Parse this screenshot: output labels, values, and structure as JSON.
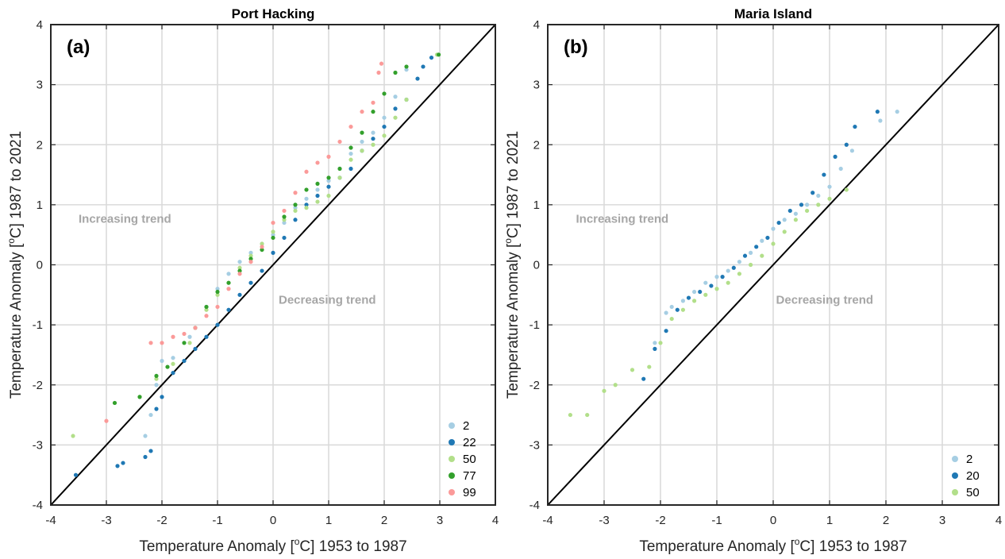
{
  "chart_data": [
    {
      "type": "scatter",
      "panel_label": "(a)",
      "title": "Port Hacking",
      "xlabel_pre": "Temperature Anomaly [",
      "xlabel_sup": "o",
      "xlabel_post": "C] 1953 to 1987",
      "ylabel_pre": "Temperature Anomaly [",
      "ylabel_sup": "o",
      "ylabel_post": "C] 1987 to 2021",
      "xlim": [
        -4,
        4
      ],
      "ylim": [
        -4,
        4
      ],
      "xticks": [
        "-4",
        "-3",
        "-2",
        "-1",
        "0",
        "1",
        "2",
        "3",
        "4"
      ],
      "yticks": [
        "-4",
        "-3",
        "-2",
        "-1",
        "0",
        "1",
        "2",
        "3",
        "4"
      ],
      "grid": true,
      "reference_line": "y = x",
      "annotations": [
        {
          "text": "Increasing trend",
          "x": -3.5,
          "y": 0.7
        },
        {
          "text": "Decreasing trend",
          "x": 0.1,
          "y": -0.65
        }
      ],
      "legend_position": "bottom-right",
      "series": [
        {
          "name": "2",
          "color": "#a6cee3",
          "points": [
            [
              -2.3,
              -2.85
            ],
            [
              -2.2,
              -2.5
            ],
            [
              -2.1,
              -2.0
            ],
            [
              -2.0,
              -1.6
            ],
            [
              -1.8,
              -1.55
            ],
            [
              -1.5,
              -1.2
            ],
            [
              -1.2,
              -0.7
            ],
            [
              -1.0,
              -0.4
            ],
            [
              -0.8,
              -0.15
            ],
            [
              -0.6,
              0.05
            ],
            [
              -0.4,
              0.2
            ],
            [
              -0.2,
              0.35
            ],
            [
              0.0,
              0.5
            ],
            [
              0.2,
              0.7
            ],
            [
              0.4,
              0.95
            ],
            [
              0.6,
              1.1
            ],
            [
              0.8,
              1.25
            ],
            [
              1.0,
              1.4
            ],
            [
              1.2,
              1.6
            ],
            [
              1.4,
              1.85
            ],
            [
              1.6,
              2.05
            ],
            [
              1.8,
              2.2
            ],
            [
              2.0,
              2.45
            ],
            [
              2.2,
              2.8
            ],
            [
              2.4,
              3.25
            ]
          ]
        },
        {
          "name": "22",
          "color": "#1f78b4",
          "points": [
            [
              -3.55,
              -3.5
            ],
            [
              -2.8,
              -3.35
            ],
            [
              -2.7,
              -3.3
            ],
            [
              -2.3,
              -3.2
            ],
            [
              -2.2,
              -3.1
            ],
            [
              -2.1,
              -2.4
            ],
            [
              -2.0,
              -2.2
            ],
            [
              -1.8,
              -1.8
            ],
            [
              -1.6,
              -1.6
            ],
            [
              -1.4,
              -1.4
            ],
            [
              -1.2,
              -1.2
            ],
            [
              -1.0,
              -1.0
            ],
            [
              -0.8,
              -0.75
            ],
            [
              -0.6,
              -0.5
            ],
            [
              -0.4,
              -0.3
            ],
            [
              -0.2,
              -0.1
            ],
            [
              0.0,
              0.2
            ],
            [
              0.2,
              0.45
            ],
            [
              0.4,
              0.75
            ],
            [
              0.6,
              1.0
            ],
            [
              0.8,
              1.15
            ],
            [
              1.0,
              1.3
            ],
            [
              1.2,
              1.45
            ],
            [
              1.4,
              1.6
            ],
            [
              1.6,
              1.9
            ],
            [
              1.8,
              2.1
            ],
            [
              2.0,
              2.3
            ],
            [
              2.2,
              2.6
            ],
            [
              2.4,
              2.75
            ],
            [
              2.6,
              3.1
            ],
            [
              2.7,
              3.3
            ],
            [
              2.85,
              3.45
            ]
          ]
        },
        {
          "name": "50",
          "color": "#b2df8a",
          "points": [
            [
              -3.6,
              -2.85
            ],
            [
              -2.4,
              -2.2
            ],
            [
              -2.1,
              -1.9
            ],
            [
              -1.8,
              -1.65
            ],
            [
              -1.5,
              -1.3
            ],
            [
              -1.2,
              -0.75
            ],
            [
              -1.0,
              -0.5
            ],
            [
              -0.8,
              -0.3
            ],
            [
              -0.6,
              -0.05
            ],
            [
              -0.4,
              0.15
            ],
            [
              -0.2,
              0.35
            ],
            [
              0.0,
              0.55
            ],
            [
              0.2,
              0.75
            ],
            [
              0.4,
              0.9
            ],
            [
              0.6,
              0.95
            ],
            [
              0.8,
              1.05
            ],
            [
              1.0,
              1.15
            ],
            [
              1.2,
              1.45
            ],
            [
              1.4,
              1.75
            ],
            [
              1.6,
              1.9
            ],
            [
              1.8,
              2.0
            ],
            [
              2.0,
              2.15
            ],
            [
              2.2,
              2.45
            ],
            [
              2.4,
              2.75
            ],
            [
              2.95,
              3.5
            ]
          ]
        },
        {
          "name": "77",
          "color": "#33a02c",
          "points": [
            [
              -2.85,
              -2.3
            ],
            [
              -2.4,
              -2.2
            ],
            [
              -2.1,
              -1.85
            ],
            [
              -1.9,
              -1.7
            ],
            [
              -1.6,
              -1.3
            ],
            [
              -1.4,
              -1.05
            ],
            [
              -1.2,
              -0.7
            ],
            [
              -1.0,
              -0.45
            ],
            [
              -0.8,
              -0.3
            ],
            [
              -0.6,
              -0.1
            ],
            [
              -0.4,
              0.1
            ],
            [
              -0.2,
              0.25
            ],
            [
              0.0,
              0.45
            ],
            [
              0.2,
              0.8
            ],
            [
              0.4,
              1.0
            ],
            [
              0.6,
              1.25
            ],
            [
              0.8,
              1.35
            ],
            [
              1.0,
              1.45
            ],
            [
              1.2,
              1.6
            ],
            [
              1.4,
              1.95
            ],
            [
              1.6,
              2.2
            ],
            [
              1.8,
              2.55
            ],
            [
              2.0,
              2.85
            ],
            [
              2.2,
              3.2
            ],
            [
              2.4,
              3.3
            ],
            [
              2.98,
              3.5
            ]
          ]
        },
        {
          "name": "99",
          "color": "#fb9a99",
          "points": [
            [
              -3.0,
              -2.6
            ],
            [
              -2.2,
              -1.3
            ],
            [
              -2.0,
              -1.3
            ],
            [
              -1.8,
              -1.2
            ],
            [
              -1.6,
              -1.15
            ],
            [
              -1.4,
              -1.05
            ],
            [
              -1.2,
              -0.85
            ],
            [
              -1.0,
              -0.7
            ],
            [
              -0.8,
              -0.4
            ],
            [
              -0.6,
              -0.15
            ],
            [
              -0.4,
              0.05
            ],
            [
              -0.2,
              0.3
            ],
            [
              0.0,
              0.7
            ],
            [
              0.2,
              0.9
            ],
            [
              0.4,
              1.2
            ],
            [
              0.6,
              1.55
            ],
            [
              0.8,
              1.7
            ],
            [
              1.0,
              1.8
            ],
            [
              1.2,
              2.05
            ],
            [
              1.4,
              2.3
            ],
            [
              1.6,
              2.55
            ],
            [
              1.8,
              2.7
            ],
            [
              1.95,
              3.35
            ],
            [
              1.9,
              3.2
            ]
          ]
        }
      ]
    },
    {
      "type": "scatter",
      "panel_label": "(b)",
      "title": "Maria Island",
      "xlabel_pre": "Temperature Anomaly [",
      "xlabel_sup": "o",
      "xlabel_post": "C] 1953 to 1987",
      "ylabel_pre": "Temperature Anomaly [",
      "ylabel_sup": "o",
      "ylabel_post": "C] 1987 to 2021",
      "xlim": [
        -4,
        4
      ],
      "ylim": [
        -4,
        4
      ],
      "xticks": [
        "-4",
        "-3",
        "-2",
        "-1",
        "0",
        "1",
        "2",
        "3",
        "4"
      ],
      "yticks": [
        "-4",
        "-3",
        "-2",
        "-1",
        "0",
        "1",
        "2",
        "3",
        "4"
      ],
      "grid": true,
      "reference_line": "y = x",
      "annotations": [
        {
          "text": "Increasing trend",
          "x": -3.5,
          "y": 0.7
        },
        {
          "text": "Decreasing trend",
          "x": 0.05,
          "y": -0.65
        }
      ],
      "legend_position": "bottom-right",
      "series": [
        {
          "name": "2",
          "color": "#a6cee3",
          "points": [
            [
              -2.1,
              -1.3
            ],
            [
              -1.9,
              -0.8
            ],
            [
              -1.8,
              -0.7
            ],
            [
              -1.6,
              -0.6
            ],
            [
              -1.4,
              -0.45
            ],
            [
              -1.2,
              -0.3
            ],
            [
              -1.0,
              -0.2
            ],
            [
              -0.8,
              -0.1
            ],
            [
              -0.6,
              0.05
            ],
            [
              -0.4,
              0.2
            ],
            [
              -0.2,
              0.4
            ],
            [
              0.0,
              0.6
            ],
            [
              0.2,
              0.75
            ],
            [
              0.4,
              0.85
            ],
            [
              0.6,
              1.0
            ],
            [
              0.8,
              1.15
            ],
            [
              1.0,
              1.3
            ],
            [
              1.2,
              1.6
            ],
            [
              1.4,
              1.9
            ],
            [
              1.9,
              2.4
            ],
            [
              2.2,
              2.55
            ]
          ]
        },
        {
          "name": "20",
          "color": "#1f78b4",
          "points": [
            [
              -2.3,
              -1.9
            ],
            [
              -2.1,
              -1.4
            ],
            [
              -1.9,
              -1.1
            ],
            [
              -1.7,
              -0.75
            ],
            [
              -1.5,
              -0.55
            ],
            [
              -1.3,
              -0.45
            ],
            [
              -1.1,
              -0.35
            ],
            [
              -0.9,
              -0.2
            ],
            [
              -0.7,
              -0.05
            ],
            [
              -0.5,
              0.15
            ],
            [
              -0.3,
              0.3
            ],
            [
              -0.1,
              0.45
            ],
            [
              0.1,
              0.7
            ],
            [
              0.3,
              0.9
            ],
            [
              0.5,
              1.0
            ],
            [
              0.7,
              1.2
            ],
            [
              0.9,
              1.5
            ],
            [
              1.1,
              1.8
            ],
            [
              1.3,
              2.0
            ],
            [
              1.45,
              2.3
            ],
            [
              1.85,
              2.55
            ]
          ]
        },
        {
          "name": "50",
          "color": "#b2df8a",
          "points": [
            [
              -3.6,
              -2.5
            ],
            [
              -3.3,
              -2.5
            ],
            [
              -3.0,
              -2.1
            ],
            [
              -2.8,
              -2.0
            ],
            [
              -2.5,
              -1.75
            ],
            [
              -2.2,
              -1.7
            ],
            [
              -2.0,
              -1.3
            ],
            [
              -1.8,
              -0.9
            ],
            [
              -1.6,
              -0.75
            ],
            [
              -1.4,
              -0.6
            ],
            [
              -1.2,
              -0.5
            ],
            [
              -1.0,
              -0.4
            ],
            [
              -0.8,
              -0.3
            ],
            [
              -0.6,
              -0.15
            ],
            [
              -0.4,
              0.0
            ],
            [
              -0.2,
              0.15
            ],
            [
              0.0,
              0.35
            ],
            [
              0.2,
              0.55
            ],
            [
              0.4,
              0.75
            ],
            [
              0.6,
              0.9
            ],
            [
              0.8,
              1.0
            ],
            [
              1.0,
              1.1
            ],
            [
              1.3,
              1.25
            ]
          ]
        }
      ]
    }
  ]
}
